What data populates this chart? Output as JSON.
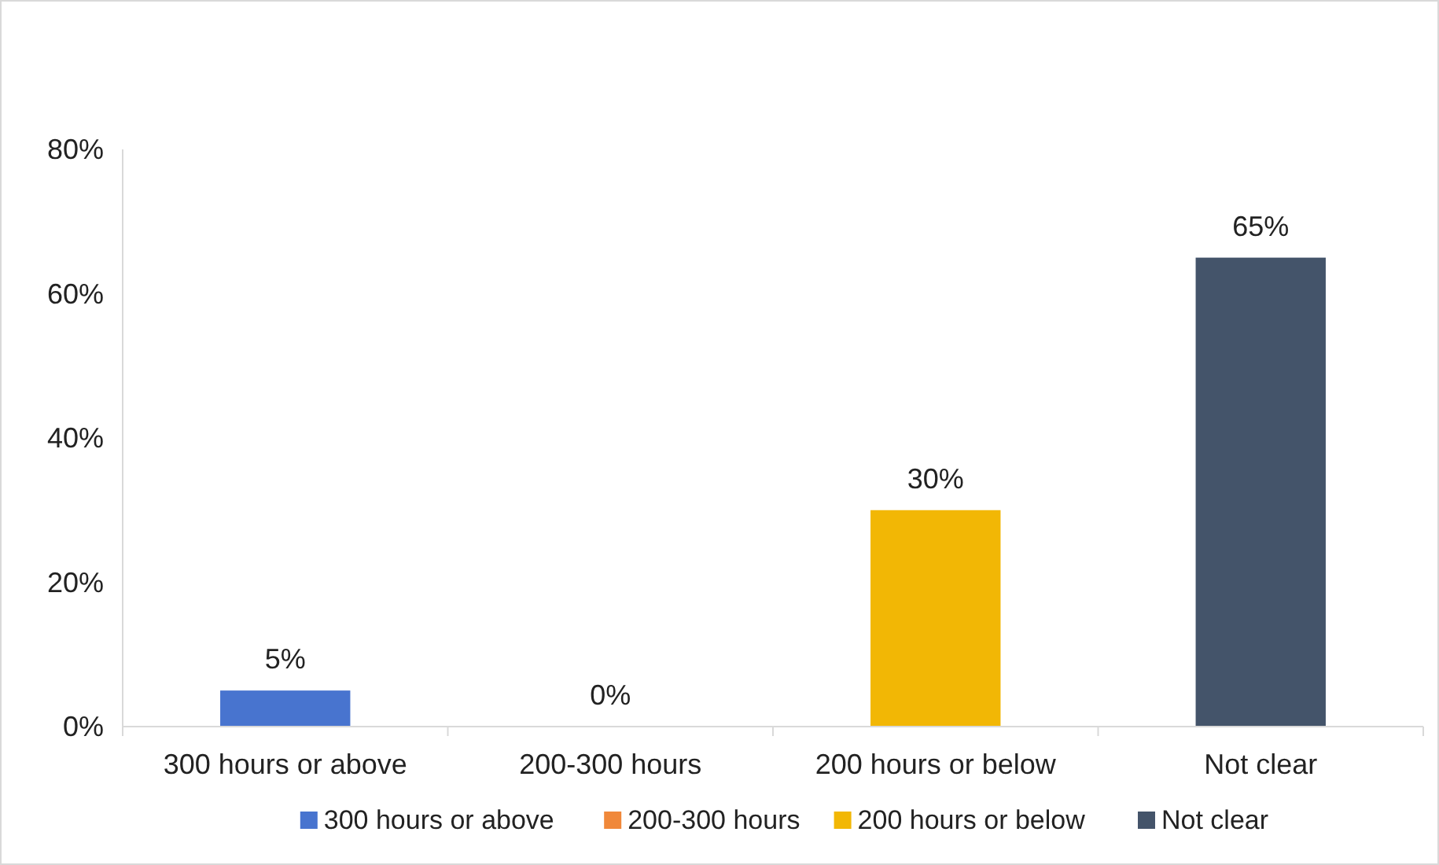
{
  "chart_data": {
    "type": "bar",
    "categories": [
      "300 hours or above",
      "200-300 hours",
      "200 hours or below",
      "Not clear"
    ],
    "series": [
      {
        "name": "300 hours or above",
        "color": "#4874cf",
        "values": [
          5,
          null,
          null,
          null
        ],
        "value_labels": [
          "5%",
          null,
          null,
          null
        ]
      },
      {
        "name": "200-300 hours",
        "color": "#f0883a",
        "values": [
          null,
          0,
          null,
          null
        ],
        "value_labels": [
          null,
          "0%",
          null,
          null
        ]
      },
      {
        "name": "200 hours or below",
        "color": "#f2b705",
        "values": [
          null,
          null,
          30,
          null
        ],
        "value_labels": [
          null,
          null,
          "30%",
          null
        ]
      },
      {
        "name": "Not clear",
        "color": "#44546a",
        "values": [
          null,
          null,
          null,
          65
        ],
        "value_labels": [
          null,
          null,
          null,
          "65%"
        ]
      }
    ],
    "ylim": [
      0,
      80
    ],
    "yticks": [
      {
        "value": 0,
        "label": "0%"
      },
      {
        "value": 20,
        "label": "20%"
      },
      {
        "value": 40,
        "label": "40%"
      },
      {
        "value": 60,
        "label": "60%"
      },
      {
        "value": 80,
        "label": "80%"
      }
    ],
    "grid": false,
    "legend": "bottom"
  }
}
